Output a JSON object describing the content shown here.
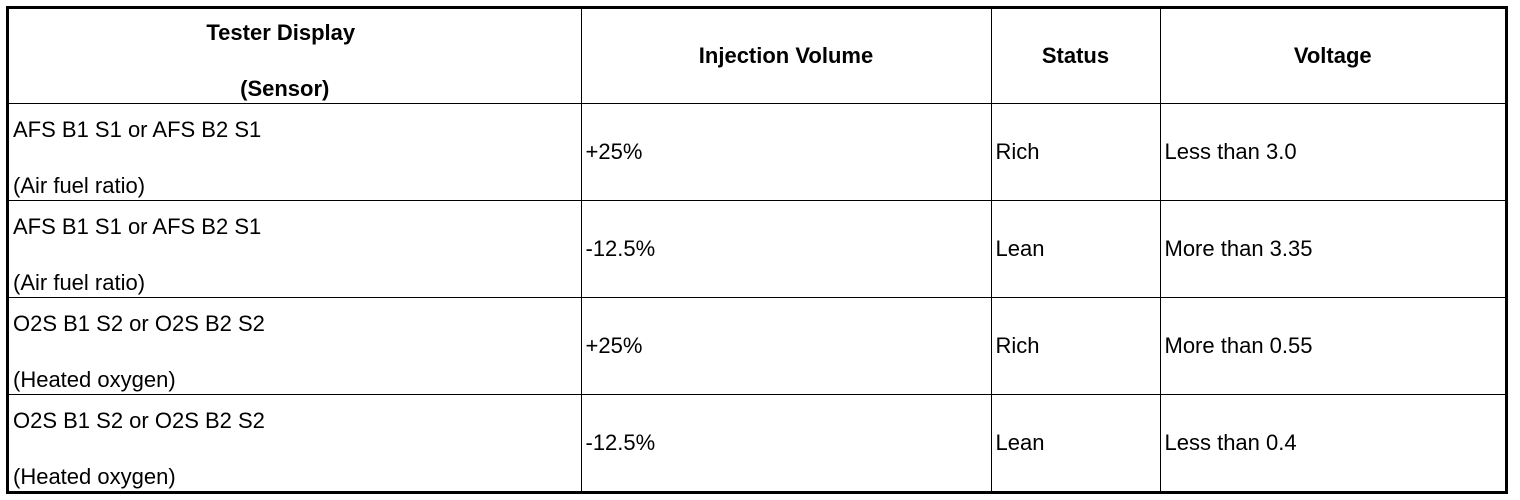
{
  "table": {
    "headers": {
      "sensor_line1": "Tester Display",
      "sensor_line2": "(Sensor)",
      "injection_volume": "Injection Volume",
      "status": "Status",
      "voltage": "Voltage"
    },
    "rows": [
      {
        "sensor": "AFS B1 S1 or AFS B2 S1",
        "sensor_type": "(Air fuel ratio)",
        "injection_volume": "+25%",
        "status": "Rich",
        "voltage": "Less than 3.0"
      },
      {
        "sensor": "AFS B1 S1 or AFS B2 S1",
        "sensor_type": "(Air fuel ratio)",
        "injection_volume": "-12.5%",
        "status": "Lean",
        "voltage": "More than 3.35"
      },
      {
        "sensor": "O2S B1 S2 or O2S B2 S2",
        "sensor_type": "(Heated oxygen)",
        "injection_volume": "+25%",
        "status": "Rich",
        "voltage": "More than 0.55"
      },
      {
        "sensor": "O2S B1 S2 or O2S B2 S2",
        "sensor_type": "(Heated oxygen)",
        "injection_volume": "-12.5%",
        "status": "Lean",
        "voltage": "Less than 0.4"
      }
    ]
  }
}
